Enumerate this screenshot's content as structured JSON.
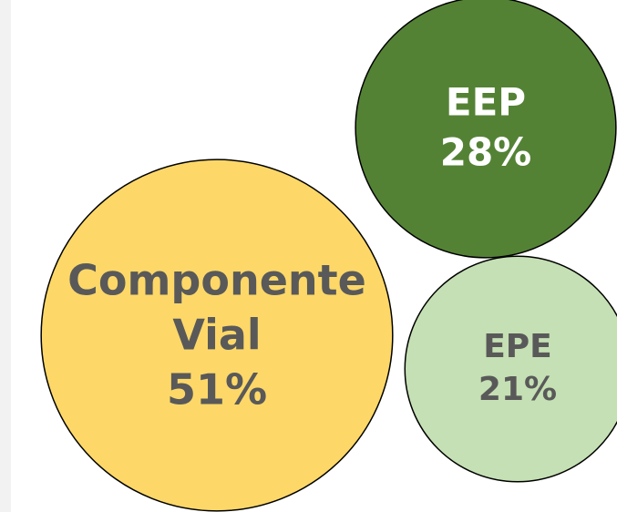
{
  "chart_data": {
    "type": "packed_bubble",
    "categories": [
      "Componente Vial",
      "EEP",
      "EPE"
    ],
    "values": [
      51,
      28,
      21
    ],
    "value_labels": [
      "51%",
      "28%",
      "21%"
    ],
    "colors": [
      "#fdd868",
      "#548235",
      "#c5e0b4"
    ]
  }
}
